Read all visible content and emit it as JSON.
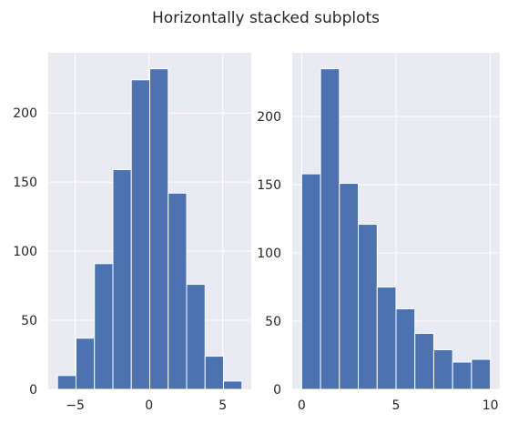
{
  "chart_data": {
    "title": "Horizontally stacked subplots",
    "subplots": [
      {
        "type": "bar",
        "subtype": "histogram",
        "bins": [
          {
            "x0": -6.2,
            "x1": -4.95,
            "count": 10
          },
          {
            "x0": -4.95,
            "x1": -3.7,
            "count": 37
          },
          {
            "x0": -3.7,
            "x1": -2.45,
            "count": 91
          },
          {
            "x0": -2.45,
            "x1": -1.2,
            "count": 159
          },
          {
            "x0": -1.2,
            "x1": 0.05,
            "count": 224
          },
          {
            "x0": 0.05,
            "x1": 1.3,
            "count": 232
          },
          {
            "x0": 1.3,
            "x1": 2.55,
            "count": 142
          },
          {
            "x0": 2.55,
            "x1": 3.8,
            "count": 76
          },
          {
            "x0": 3.8,
            "x1": 5.05,
            "count": 24
          },
          {
            "x0": 5.05,
            "x1": 6.3,
            "count": 6
          }
        ],
        "xlim": [
          -6.83,
          6.93
        ],
        "ylim": [
          0,
          243.6
        ],
        "xticks": [
          -5,
          0,
          5
        ],
        "yticks": [
          0,
          50,
          100,
          150,
          200
        ],
        "grid": true,
        "color": "#4c72b0"
      },
      {
        "type": "bar",
        "subtype": "histogram",
        "bins": [
          {
            "x0": 0,
            "x1": 1,
            "count": 158
          },
          {
            "x0": 1,
            "x1": 2,
            "count": 235
          },
          {
            "x0": 2,
            "x1": 3,
            "count": 151
          },
          {
            "x0": 3,
            "x1": 4,
            "count": 121
          },
          {
            "x0": 4,
            "x1": 5,
            "count": 75
          },
          {
            "x0": 5,
            "x1": 6,
            "count": 59
          },
          {
            "x0": 6,
            "x1": 7,
            "count": 41
          },
          {
            "x0": 7,
            "x1": 8,
            "count": 29
          },
          {
            "x0": 8,
            "x1": 9,
            "count": 20
          },
          {
            "x0": 9,
            "x1": 10,
            "count": 22
          }
        ],
        "xlim": [
          -0.5,
          10.5
        ],
        "ylim": [
          0,
          246.75
        ],
        "xticks": [
          0,
          5,
          10
        ],
        "yticks": [
          0,
          50,
          100,
          150,
          200
        ],
        "grid": true,
        "color": "#4c72b0"
      }
    ]
  }
}
